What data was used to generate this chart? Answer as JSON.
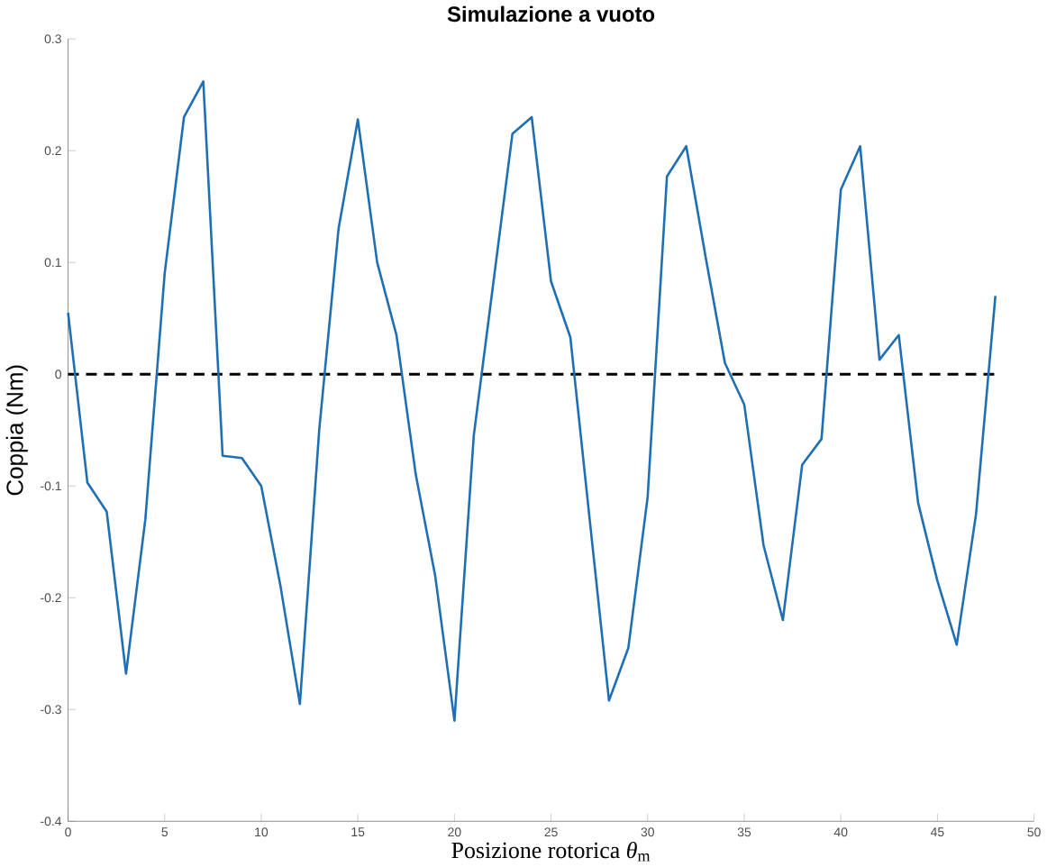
{
  "chart_data": {
    "type": "line",
    "title": "Simulazione a vuoto",
    "xlabel": "Posizione rotorica *θ*$_{m}$",
    "ylabel": "Coppia (Nm)",
    "x": [
      0,
      1,
      2,
      3,
      4,
      5,
      6,
      7,
      8,
      9,
      10,
      11,
      12,
      13,
      14,
      15,
      16,
      17,
      18,
      19,
      20,
      21,
      22,
      23,
      24,
      25,
      26,
      27,
      28,
      29,
      30,
      31,
      32,
      33,
      34,
      35,
      36,
      37,
      38,
      39,
      40,
      41,
      42,
      43,
      44,
      45,
      46,
      47,
      48
    ],
    "series": [
      {
        "color": "#1f6fb4",
        "values": [
          0.055,
          -0.097,
          -0.123,
          -0.268,
          -0.13,
          0.09,
          0.23,
          0.262,
          -0.073,
          -0.075,
          -0.1,
          -0.19,
          -0.295,
          -0.05,
          0.13,
          0.228,
          0.1,
          0.035,
          -0.09,
          -0.18,
          -0.31,
          -0.055,
          0.08,
          0.215,
          0.23,
          0.083,
          0.033,
          -0.13,
          -0.292,
          -0.245,
          -0.11,
          0.177,
          0.204,
          0.105,
          0.01,
          -0.027,
          -0.153,
          -0.22,
          -0.081,
          -0.058,
          0.165,
          0.204,
          0.013,
          0.035,
          -0.115,
          -0.185,
          -0.242,
          -0.125,
          0.07
        ]
      }
    ],
    "xlim": [
      0,
      50
    ],
    "ylim": [
      -0.4,
      0.3
    ],
    "xticks": [
      0,
      5,
      10,
      15,
      20,
      25,
      30,
      35,
      40,
      45,
      50
    ],
    "yticks": [
      -0.4,
      -0.3,
      -0.2,
      -0.1,
      0,
      0.1,
      0.2,
      0.3
    ],
    "ref_lines": [
      {
        "axis": "y",
        "value": 0,
        "color": "#000000",
        "line_style": "dashed"
      }
    ],
    "marker": "none"
  }
}
